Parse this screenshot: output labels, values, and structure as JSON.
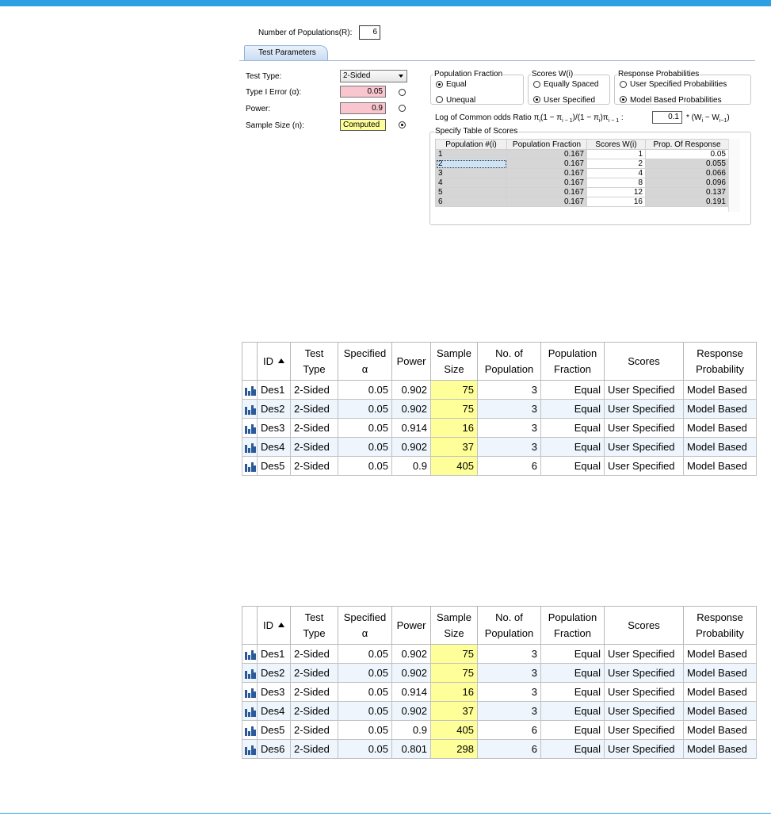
{
  "dialog": {
    "num_populations_label": "Number of Populations(R):",
    "num_populations_value": "6",
    "tab_label": "Test Parameters",
    "test_type_label": "Test Type:",
    "test_type_value": "2-Sided",
    "type1_label": "Type I Error (α):",
    "type1_value": "0.05",
    "power_label": "Power:",
    "power_value": "0.9",
    "sample_size_label": "Sample Size (n):",
    "sample_size_value": "Computed",
    "pop_fraction": {
      "title": "Population Fraction",
      "opt1": "Equal",
      "opt2": "Unequal"
    },
    "scores": {
      "title": "Scores W(i)",
      "opt1": "Equally Spaced",
      "opt2": "User Specified"
    },
    "resp": {
      "title": "Response Probabilities",
      "opt1": "User Specified Probabilities",
      "opt2": "Model Based Probabilities"
    },
    "lcor_label": "Log of Common odds Ratio",
    "lcor_value": "0.1",
    "score_table": {
      "title": "Specify Table of Scores",
      "headers": [
        "Population #(i)",
        "Population Fraction",
        "Scores W(i)",
        "Prop. Of Response"
      ],
      "rows": [
        [
          "1",
          "0.167",
          "1",
          "0.05"
        ],
        [
          "2",
          "0.167",
          "2",
          "0.055"
        ],
        [
          "3",
          "0.167",
          "4",
          "0.066"
        ],
        [
          "4",
          "0.167",
          "8",
          "0.096"
        ],
        [
          "5",
          "0.167",
          "12",
          "0.137"
        ],
        [
          "6",
          "0.167",
          "16",
          "0.191"
        ]
      ]
    }
  },
  "grid_headers": [
    "ID",
    "Test Type",
    "Specified α",
    "Power",
    "Sample Size",
    "No. of Population",
    "Population Fraction",
    "Scores",
    "Response Probability"
  ],
  "grid1": [
    [
      "Des1",
      "2-Sided",
      "0.05",
      "0.902",
      "75",
      "3",
      "Equal",
      "User Specified",
      "Model Based"
    ],
    [
      "Des2",
      "2-Sided",
      "0.05",
      "0.902",
      "75",
      "3",
      "Equal",
      "User Specified",
      "Model Based"
    ],
    [
      "Des3",
      "2-Sided",
      "0.05",
      "0.914",
      "16",
      "3",
      "Equal",
      "User Specified",
      "Model Based"
    ],
    [
      "Des4",
      "2-Sided",
      "0.05",
      "0.902",
      "37",
      "3",
      "Equal",
      "User Specified",
      "Model Based"
    ],
    [
      "Des5",
      "2-Sided",
      "0.05",
      "0.9",
      "405",
      "6",
      "Equal",
      "User Specified",
      "Model Based"
    ]
  ],
  "grid2": [
    [
      "Des1",
      "2-Sided",
      "0.05",
      "0.902",
      "75",
      "3",
      "Equal",
      "User Specified",
      "Model Based"
    ],
    [
      "Des2",
      "2-Sided",
      "0.05",
      "0.902",
      "75",
      "3",
      "Equal",
      "User Specified",
      "Model Based"
    ],
    [
      "Des3",
      "2-Sided",
      "0.05",
      "0.914",
      "16",
      "3",
      "Equal",
      "User Specified",
      "Model Based"
    ],
    [
      "Des4",
      "2-Sided",
      "0.05",
      "0.902",
      "37",
      "3",
      "Equal",
      "User Specified",
      "Model Based"
    ],
    [
      "Des5",
      "2-Sided",
      "0.05",
      "0.9",
      "405",
      "6",
      "Equal",
      "User Specified",
      "Model Based"
    ],
    [
      "Des6",
      "2-Sided",
      "0.05",
      "0.801",
      "298",
      "6",
      "Equal",
      "User Specified",
      "Model Based"
    ]
  ],
  "colors": {
    "accent": "#2e9fe3",
    "input_error": "#f9c6cf",
    "computed": "#ffff99"
  },
  "icons": {
    "row_icon": "bar-chart-icon",
    "sort_icon": "sort-ascending-icon"
  }
}
